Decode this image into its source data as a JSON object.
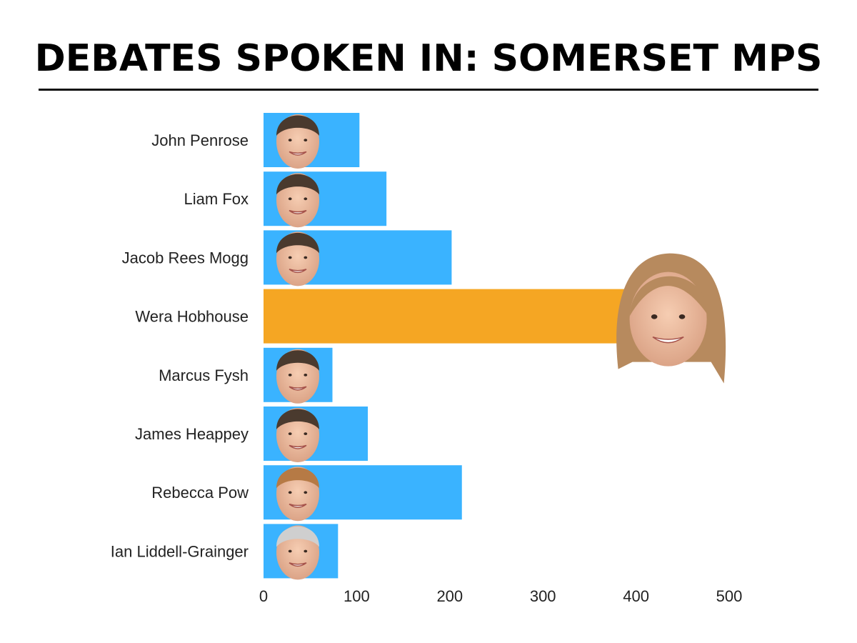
{
  "chart_data": {
    "type": "bar",
    "orientation": "horizontal",
    "title": "DEBATES SPOKEN IN: SOMERSET MPS",
    "xlabel": "",
    "ylabel": "",
    "categories": [
      "John Penrose",
      "Liam Fox",
      "Jacob Rees Mogg",
      "Wera Hobhouse",
      "Marcus Fysh",
      "James Heappey",
      "Rebecca Pow",
      "Ian Liddell-Grainger"
    ],
    "values": [
      103,
      132,
      202,
      400,
      74,
      112,
      213,
      80
    ],
    "xlim": [
      0,
      500
    ],
    "xticks": [
      "0",
      "100",
      "200",
      "300",
      "400",
      "500"
    ],
    "grid": false,
    "legend": "none",
    "colors": {
      "default_bar": "#3ab3ff",
      "highlight_bar": "#f5a623",
      "title_rule": "#111111"
    },
    "highlight_index": 3
  }
}
